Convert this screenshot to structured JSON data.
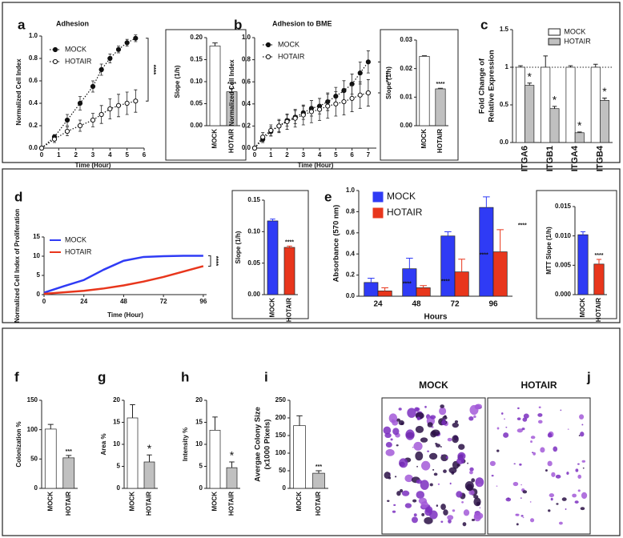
{
  "chart_data": [
    {
      "type": "line",
      "label": "a",
      "title": "Adhesion",
      "xlabel": "Time (Hour)",
      "ylabel": "Normalized Cell Index",
      "x": [
        0,
        0.75,
        1.5,
        2.25,
        3,
        3.5,
        4,
        4.5,
        5,
        5.5
      ],
      "series": [
        {
          "name": "MOCK",
          "color": "#111111",
          "marker": "filled",
          "values": [
            0,
            0.1,
            0.25,
            0.4,
            0.55,
            0.7,
            0.8,
            0.88,
            0.94,
            0.98
          ],
          "errors": [
            0,
            0.02,
            0.05,
            0.06,
            0.05,
            0.05,
            0.04,
            0.03,
            0.03,
            0.03
          ]
        },
        {
          "name": "HOTAIR",
          "color": "#111111",
          "marker": "open",
          "values": [
            0,
            0.08,
            0.15,
            0.2,
            0.25,
            0.3,
            0.35,
            0.38,
            0.4,
            0.42
          ],
          "errors": [
            0,
            0.03,
            0.04,
            0.05,
            0.06,
            0.08,
            0.09,
            0.1,
            0.1,
            0.1
          ]
        }
      ],
      "line_style": "dotted",
      "significance": "****",
      "xlim": [
        0,
        6
      ],
      "xticks": [
        0,
        1,
        2,
        3,
        4,
        5,
        6
      ],
      "ylim": [
        0,
        1
      ],
      "yticks": [
        {
          "value": 0,
          "label": "0.0"
        },
        0.2,
        0.4,
        0.6,
        0.8,
        {
          "value": 1,
          "label": "1.0"
        }
      ]
    },
    {
      "type": "bar",
      "ylabel": "Slope (1/h)",
      "categories": [
        "MOCK",
        "HOTAIR"
      ],
      "values": [
        0.181,
        0.077
      ],
      "errors": [
        0.007,
        0.008
      ],
      "colors": [
        "#ffffff",
        "#c0c0c0"
      ],
      "significance": "****",
      "ylim": [
        0,
        0.2
      ],
      "yticks": [
        {
          "value": 0,
          "label": "0.00"
        },
        0.05,
        {
          "value": 0.1,
          "label": "0.10"
        },
        0.15,
        {
          "value": 0.2,
          "label": "0.20"
        }
      ]
    },
    {
      "type": "line",
      "label": "b",
      "title": "Adhesion to BME",
      "xlabel": "Time (Hour)",
      "ylabel": "Normalized Cell Index",
      "x": [
        0,
        0.5,
        1,
        1.5,
        2,
        2.5,
        3,
        3.5,
        4,
        4.5,
        5,
        5.5,
        6,
        6.5,
        7
      ],
      "series": [
        {
          "name": "MOCK",
          "color": "#111111",
          "marker": "filled",
          "values": [
            0,
            0.08,
            0.15,
            0.2,
            0.25,
            0.28,
            0.32,
            0.36,
            0.38,
            0.42,
            0.47,
            0.52,
            0.58,
            0.68,
            0.78
          ],
          "errors": [
            0,
            0.03,
            0.04,
            0.05,
            0.05,
            0.06,
            0.06,
            0.07,
            0.07,
            0.08,
            0.08,
            0.09,
            0.09,
            0.1,
            0.1
          ]
        },
        {
          "name": "HOTAIR",
          "color": "#111111",
          "marker": "open",
          "values": [
            0,
            0.1,
            0.16,
            0.2,
            0.24,
            0.27,
            0.3,
            0.33,
            0.35,
            0.38,
            0.4,
            0.42,
            0.45,
            0.48,
            0.5
          ],
          "errors": [
            0,
            0.04,
            0.05,
            0.06,
            0.07,
            0.08,
            0.09,
            0.1,
            0.1,
            0.11,
            0.11,
            0.12,
            0.12,
            0.12,
            0.12
          ]
        }
      ],
      "line_style": "dotted",
      "significance": "****",
      "xlim": [
        0,
        7.5
      ],
      "xticks": [
        0,
        1,
        2,
        3,
        4,
        5,
        6,
        7
      ],
      "ylim": [
        0,
        1
      ],
      "yticks": [
        {
          "value": 0,
          "label": "0.0"
        },
        0.2,
        0.4,
        0.6,
        0.8,
        {
          "value": 1,
          "label": "1.0"
        }
      ]
    },
    {
      "type": "bar",
      "ylabel": "Slope (1/h)",
      "categories": [
        "MOCK",
        "HOTAIR"
      ],
      "values": [
        0.0243,
        0.0129
      ],
      "errors": [
        0.0002,
        0.0002
      ],
      "colors": [
        "#ffffff",
        "#c0c0c0"
      ],
      "significance": "****",
      "ylim": [
        0,
        0.03
      ],
      "yticks": [
        {
          "value": 0,
          "label": "0.00"
        },
        0.01,
        0.02,
        0.03
      ]
    },
    {
      "type": "bar",
      "label": "c",
      "ylabel": [
        "Fold Change of",
        "Relative Expression"
      ],
      "categories": [
        "ITGA6",
        "ITGB1",
        "ITGA4",
        "ITGB4"
      ],
      "series": [
        {
          "name": "MOCK",
          "color": "#ffffff",
          "values": [
            1,
            1,
            1,
            1
          ],
          "errors": [
            0.02,
            0.15,
            0.02,
            0.04
          ]
        },
        {
          "name": "HOTAIR",
          "color": "#c0c0c0",
          "values": [
            0.76,
            0.45,
            0.13,
            0.56
          ],
          "errors": [
            0.03,
            0.03,
            0.01,
            0.03
          ]
        }
      ],
      "significance": [
        "*",
        "*",
        "*",
        "*"
      ],
      "hline": 1,
      "ylim": [
        0,
        1.5
      ],
      "yticks": [
        {
          "value": 0,
          "label": "0.0"
        },
        0.5,
        1,
        1.5
      ]
    },
    {
      "type": "line",
      "label": "d",
      "xlabel": "Time (Hour)",
      "ylabel": "Normalized Cell Index of Proliferation",
      "x": [
        0,
        12,
        24,
        36,
        48,
        60,
        72,
        84,
        96
      ],
      "series": [
        {
          "name": "MOCK",
          "color": "#2f3bf5",
          "values": [
            0.5,
            2.2,
            3.8,
            6.5,
            8.8,
            9.8,
            10,
            10.1,
            10.1
          ]
        },
        {
          "name": "HOTAIR",
          "color": "#e8361c",
          "values": [
            0.2,
            0.6,
            1,
            1.6,
            2.4,
            3.4,
            4.6,
            6,
            7.4
          ]
        }
      ],
      "line_style": "solid",
      "significance": "****",
      "xlim": [
        0,
        98
      ],
      "xticks": [
        0,
        24,
        48,
        72,
        96
      ],
      "ylim": [
        0,
        15
      ],
      "yticks": [
        0,
        5,
        10,
        15
      ]
    },
    {
      "type": "bar",
      "ylabel": "Slope (1/h)",
      "categories": [
        "MOCK",
        "HOTAIR"
      ],
      "values": [
        0.117,
        0.075
      ],
      "errors": [
        0.003,
        0.002
      ],
      "colors": [
        "#2f3bf5",
        "#e8361c"
      ],
      "significance": "****",
      "ylim": [
        0,
        0.15
      ],
      "yticks": [
        {
          "value": 0,
          "label": "0.00"
        },
        0.05,
        {
          "value": 0.1,
          "label": "0.10"
        },
        0.15
      ]
    },
    {
      "type": "bar",
      "label": "e",
      "xlabel": "Hours",
      "ylabel": "Absorbance (570 nm)",
      "categories": [
        "24",
        "48",
        "72",
        "96"
      ],
      "series": [
        {
          "name": "MOCK",
          "color": "#2f3bf5",
          "values": [
            0.13,
            0.26,
            0.57,
            0.84
          ],
          "errors": [
            0.04,
            0.1,
            0.04,
            0.1
          ]
        },
        {
          "name": "HOTAIR",
          "color": "#e8361c",
          "values": [
            0.05,
            0.08,
            0.23,
            0.42
          ],
          "errors": [
            0.03,
            0.02,
            0.12,
            0.21
          ]
        }
      ],
      "significance": [
        "****",
        "****",
        "****",
        "****"
      ],
      "ylim": [
        0,
        1
      ],
      "yticks": [
        {
          "value": 0,
          "label": "0.0"
        },
        0.2,
        0.4,
        0.6,
        0.8,
        {
          "value": 1,
          "label": "1.0"
        }
      ]
    },
    {
      "type": "bar",
      "ylabel": "MTT Slope (1/h)",
      "categories": [
        "MOCK",
        "HOTAIR"
      ],
      "values": [
        0.0102,
        0.0052
      ],
      "errors": [
        0.0005,
        0.0008
      ],
      "colors": [
        "#2f3bf5",
        "#e8361c"
      ],
      "significance": "****",
      "ylim": [
        0,
        0.015
      ],
      "yticks": [
        {
          "value": 0,
          "label": "0.000"
        },
        0.005,
        {
          "value": 0.01,
          "label": "0.010"
        },
        0.015
      ]
    },
    {
      "type": "bar",
      "label": "f",
      "ylabel": "Colonization %",
      "categories": [
        "MOCK",
        "HOTAIR"
      ],
      "values": [
        101,
        52
      ],
      "errors": [
        8,
        4
      ],
      "colors": [
        "#ffffff",
        "#c0c0c0"
      ],
      "significance": "***",
      "ylim": [
        0,
        150
      ],
      "yticks": [
        0,
        50,
        100,
        150
      ]
    },
    {
      "type": "bar",
      "label": "g",
      "ylabel": "Area %",
      "categories": [
        "MOCK",
        "HOTAIR"
      ],
      "values": [
        16,
        6
      ],
      "errors": [
        3,
        1.6
      ],
      "colors": [
        "#ffffff",
        "#c0c0c0"
      ],
      "significance": "*",
      "ylim": [
        0,
        20
      ],
      "yticks": [
        0,
        5,
        10,
        15,
        20
      ]
    },
    {
      "type": "bar",
      "label": "h",
      "ylabel": "Intensity %",
      "categories": [
        "MOCK",
        "HOTAIR"
      ],
      "values": [
        13.2,
        4.7
      ],
      "errors": [
        3,
        1.3
      ],
      "colors": [
        "#ffffff",
        "#c0c0c0"
      ],
      "significance": "*",
      "ylim": [
        0,
        20
      ],
      "yticks": [
        0,
        5,
        10,
        15,
        20
      ]
    },
    {
      "type": "bar",
      "label": "i",
      "ylabel": [
        "Avergae Colony Size",
        "(x1000 Pixels)"
      ],
      "categories": [
        "MOCK",
        "HOTAIR"
      ],
      "values": [
        178,
        43
      ],
      "errors": [
        28,
        7
      ],
      "colors": [
        "#ffffff",
        "#c0c0c0"
      ],
      "significance": "***",
      "ylim": [
        0,
        250
      ],
      "yticks": [
        0,
        50,
        100,
        150,
        200,
        250
      ]
    },
    {
      "type": "image",
      "label": "j",
      "panels": [
        "MOCK",
        "HOTAIR"
      ]
    }
  ]
}
